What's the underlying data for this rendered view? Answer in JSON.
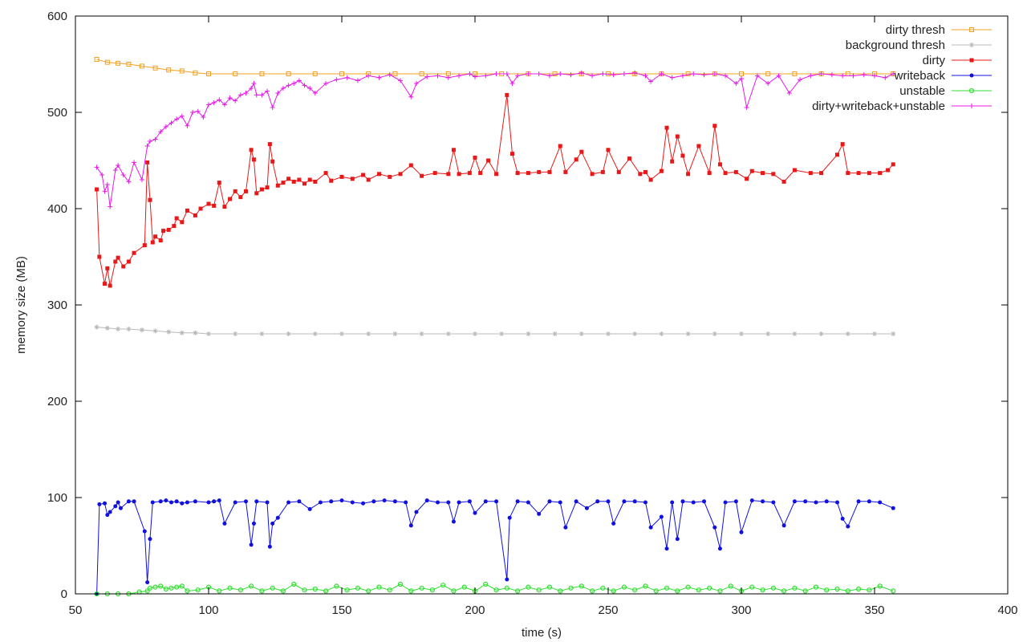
{
  "chart_data": {
    "type": "line",
    "title": "",
    "xlabel": "time (s)",
    "ylabel": "memory size (MB)",
    "xlim": [
      50,
      400
    ],
    "ylim": [
      0,
      600
    ],
    "xticks": [
      "50",
      "100",
      "150",
      "200",
      "250",
      "300",
      "350",
      "400"
    ],
    "yticks": [
      "0",
      "100",
      "200",
      "300",
      "400",
      "500",
      "600"
    ],
    "grid": false,
    "legend_position": "top-right",
    "series": [
      {
        "name": "dirty thresh",
        "color": "#f0a020",
        "marker": "square-open",
        "x": [
          58,
          62,
          66,
          70,
          75,
          80,
          85,
          90,
          95,
          100,
          110,
          120,
          130,
          140,
          150,
          160,
          170,
          180,
          190,
          200,
          210,
          220,
          230,
          240,
          250,
          260,
          270,
          280,
          290,
          300,
          310,
          320,
          330,
          340,
          350,
          357
        ],
        "y": [
          555,
          552,
          551,
          550,
          548,
          546,
          544,
          543,
          541,
          540,
          540,
          540,
          540,
          540,
          540,
          540,
          540,
          540,
          540,
          540,
          540,
          540,
          540,
          540,
          540,
          540,
          540,
          540,
          540,
          540,
          540,
          540,
          540,
          540,
          540,
          540
        ]
      },
      {
        "name": "background thresh",
        "color": "#b8b8b8",
        "marker": "star",
        "x": [
          58,
          62,
          66,
          70,
          75,
          80,
          85,
          90,
          95,
          100,
          110,
          120,
          130,
          140,
          150,
          160,
          170,
          180,
          190,
          200,
          210,
          220,
          230,
          240,
          250,
          260,
          270,
          280,
          290,
          300,
          310,
          320,
          330,
          340,
          350,
          357
        ],
        "y": [
          277,
          276,
          275,
          275,
          274,
          273,
          272,
          271,
          271,
          270,
          270,
          270,
          270,
          270,
          270,
          270,
          270,
          270,
          270,
          270,
          270,
          270,
          270,
          270,
          270,
          270,
          270,
          270,
          270,
          270,
          270,
          270,
          270,
          270,
          270,
          270
        ]
      },
      {
        "name": "dirty",
        "color": "#e81818",
        "marker": "square-filled",
        "x": [
          58,
          59,
          61,
          62,
          63,
          65,
          66,
          68,
          70,
          72,
          76,
          77,
          78,
          79,
          80,
          82,
          83,
          85,
          87,
          88,
          90,
          92,
          95,
          97,
          100,
          102,
          104,
          106,
          108,
          110,
          112,
          114,
          116,
          117,
          118,
          120,
          122,
          123,
          124,
          126,
          128,
          130,
          132,
          134,
          136,
          138,
          140,
          144,
          146,
          150,
          154,
          158,
          160,
          164,
          168,
          172,
          176,
          180,
          185,
          190,
          192,
          194,
          198,
          200,
          202,
          205,
          208,
          212,
          214,
          216,
          220,
          224,
          228,
          232,
          234,
          238,
          240,
          244,
          248,
          250,
          254,
          258,
          262,
          264,
          266,
          270,
          272,
          274,
          276,
          278,
          280,
          284,
          288,
          290,
          292,
          294,
          298,
          302,
          304,
          308,
          312,
          316,
          320,
          326,
          330,
          336,
          338,
          340,
          344,
          348,
          352,
          355,
          357
        ],
        "y": [
          420,
          350,
          322,
          338,
          320,
          345,
          349,
          340,
          345,
          354,
          362,
          448,
          409,
          365,
          371,
          367,
          377,
          378,
          382,
          390,
          386,
          398,
          393,
          400,
          405,
          403,
          427,
          402,
          410,
          418,
          412,
          418,
          461,
          451,
          416,
          420,
          422,
          467,
          449,
          424,
          427,
          431,
          428,
          430,
          426,
          430,
          428,
          437,
          429,
          433,
          431,
          435,
          430,
          436,
          433,
          436,
          445,
          434,
          437,
          436,
          461,
          436,
          437,
          453,
          437,
          450,
          436,
          518,
          457,
          437,
          437,
          438,
          438,
          465,
          438,
          451,
          459,
          436,
          438,
          461,
          438,
          452,
          436,
          438,
          430,
          439,
          484,
          449,
          475,
          455,
          436,
          465,
          437,
          486,
          446,
          437,
          438,
          431,
          439,
          437,
          436,
          428,
          440,
          437,
          437,
          456,
          467,
          437,
          437,
          437,
          437,
          440,
          446
        ]
      },
      {
        "name": "writeback",
        "color": "#1010e0",
        "marker": "circle-filled",
        "x": [
          58,
          59,
          61,
          62,
          63,
          65,
          66,
          67,
          70,
          72,
          76,
          77,
          78,
          79,
          82,
          84,
          86,
          88,
          90,
          92,
          95,
          100,
          102,
          104,
          106,
          110,
          114,
          116,
          117,
          118,
          122,
          123,
          124,
          126,
          130,
          134,
          138,
          142,
          146,
          150,
          154,
          158,
          162,
          166,
          170,
          174,
          176,
          178,
          182,
          186,
          190,
          192,
          194,
          198,
          200,
          204,
          208,
          212,
          213,
          216,
          220,
          224,
          228,
          232,
          234,
          238,
          242,
          246,
          250,
          252,
          256,
          260,
          264,
          266,
          270,
          272,
          274,
          276,
          278,
          282,
          286,
          290,
          292,
          294,
          298,
          300,
          304,
          308,
          312,
          316,
          320,
          324,
          328,
          332,
          336,
          338,
          340,
          344,
          348,
          352,
          357
        ],
        "y": [
          0,
          93,
          94,
          82,
          85,
          91,
          95,
          89,
          96,
          96,
          65,
          12,
          57,
          95,
          96,
          97,
          95,
          96,
          94,
          95,
          96,
          95,
          96,
          97,
          73,
          95,
          96,
          51,
          73,
          96,
          95,
          49,
          73,
          79,
          95,
          96,
          88,
          95,
          96,
          97,
          95,
          94,
          96,
          97,
          96,
          95,
          71,
          85,
          97,
          95,
          95,
          75,
          95,
          96,
          84,
          96,
          96,
          15,
          79,
          96,
          95,
          83,
          96,
          95,
          69,
          96,
          89,
          96,
          96,
          73,
          96,
          96,
          95,
          69,
          80,
          47,
          95,
          57,
          96,
          95,
          96,
          69,
          47,
          95,
          96,
          64,
          97,
          96,
          95,
          71,
          96,
          96,
          95,
          96,
          95,
          78,
          70,
          96,
          96,
          95,
          89
        ]
      },
      {
        "name": "unstable",
        "color": "#30e030",
        "marker": "circle-open",
        "x": [
          58,
          62,
          66,
          70,
          74,
          77,
          78,
          80,
          82,
          84,
          86,
          88,
          90,
          92,
          96,
          100,
          104,
          108,
          112,
          116,
          120,
          124,
          128,
          132,
          136,
          140,
          144,
          148,
          152,
          156,
          160,
          164,
          168,
          172,
          176,
          180,
          184,
          188,
          192,
          196,
          200,
          204,
          208,
          212,
          216,
          220,
          224,
          228,
          232,
          236,
          240,
          244,
          248,
          252,
          256,
          260,
          264,
          268,
          272,
          276,
          280,
          284,
          288,
          292,
          296,
          300,
          304,
          308,
          312,
          316,
          320,
          324,
          328,
          332,
          336,
          340,
          344,
          348,
          352,
          357
        ],
        "y": [
          0,
          0,
          0,
          0,
          2,
          3,
          6,
          7,
          8,
          5,
          6,
          7,
          8,
          3,
          4,
          7,
          3,
          6,
          4,
          8,
          3,
          6,
          3,
          10,
          4,
          5,
          3,
          8,
          4,
          6,
          3,
          7,
          4,
          10,
          3,
          6,
          4,
          9,
          3,
          7,
          3,
          10,
          4,
          6,
          3,
          7,
          4,
          7,
          3,
          6,
          8,
          3,
          6,
          3,
          7,
          4,
          8,
          3,
          6,
          3,
          7,
          4,
          6,
          3,
          8,
          3,
          7,
          4,
          6,
          3,
          6,
          3,
          7,
          4,
          5,
          3,
          5,
          4,
          8,
          3
        ]
      },
      {
        "name": "dirty+writeback+unstable",
        "color": "#e818e8",
        "marker": "plus",
        "x": [
          58,
          60,
          61,
          62,
          63,
          65,
          66,
          68,
          70,
          72,
          75,
          77,
          78,
          80,
          82,
          84,
          86,
          88,
          90,
          92,
          94,
          96,
          98,
          100,
          102,
          104,
          106,
          108,
          110,
          112,
          114,
          116,
          117,
          118,
          120,
          122,
          124,
          126,
          128,
          130,
          132,
          134,
          136,
          138,
          140,
          144,
          148,
          152,
          156,
          160,
          164,
          168,
          172,
          176,
          178,
          182,
          186,
          190,
          194,
          198,
          200,
          204,
          208,
          212,
          214,
          216,
          220,
          224,
          228,
          232,
          236,
          240,
          244,
          248,
          252,
          256,
          260,
          264,
          266,
          270,
          274,
          278,
          282,
          286,
          290,
          294,
          298,
          300,
          302,
          306,
          310,
          314,
          318,
          322,
          326,
          330,
          334,
          338,
          342,
          346,
          350,
          354,
          357
        ],
        "y": [
          443,
          435,
          418,
          425,
          402,
          440,
          445,
          435,
          428,
          448,
          430,
          465,
          470,
          472,
          480,
          485,
          489,
          493,
          496,
          486,
          500,
          501,
          495,
          508,
          510,
          513,
          508,
          515,
          512,
          518,
          520,
          525,
          530,
          518,
          518,
          522,
          505,
          520,
          525,
          528,
          530,
          533,
          528,
          525,
          520,
          530,
          534,
          536,
          533,
          538,
          536,
          539,
          533,
          516,
          530,
          537,
          538,
          536,
          538,
          540,
          537,
          538,
          540,
          540,
          530,
          538,
          540,
          540,
          538,
          540,
          539,
          541,
          538,
          540,
          539,
          540,
          541,
          538,
          532,
          540,
          536,
          538,
          540,
          539,
          540,
          538,
          530,
          535,
          505,
          538,
          530,
          538,
          520,
          534,
          538,
          540,
          539,
          538,
          538,
          539,
          538,
          536,
          540
        ]
      }
    ]
  }
}
